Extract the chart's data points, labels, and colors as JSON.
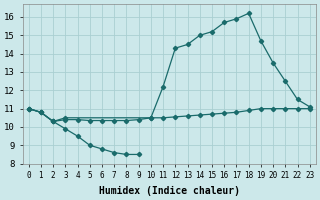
{
  "xlabel": "Humidex (Indice chaleur)",
  "background_color": "#cce8ea",
  "grid_color": "#aacfd2",
  "line_color": "#1a6b6b",
  "xlim": [
    -0.5,
    23.5
  ],
  "ylim": [
    8,
    16.7
  ],
  "xticks": [
    0,
    1,
    2,
    3,
    4,
    5,
    6,
    7,
    8,
    9,
    10,
    11,
    12,
    13,
    14,
    15,
    16,
    17,
    18,
    19,
    20,
    21,
    22,
    23
  ],
  "yticks": [
    8,
    9,
    10,
    11,
    12,
    13,
    14,
    15,
    16
  ],
  "line_dip_x": [
    0,
    1,
    2,
    3,
    4,
    5,
    6,
    7,
    8,
    9
  ],
  "line_dip_y": [
    11.0,
    10.8,
    10.3,
    9.9,
    9.5,
    9.0,
    8.8,
    8.6,
    8.5,
    8.5
  ],
  "line_flat_x": [
    0,
    1,
    2,
    3,
    4,
    5,
    6,
    7,
    8,
    9,
    10,
    11,
    12,
    13,
    14,
    15,
    16,
    17,
    18,
    19,
    20,
    21,
    22,
    23
  ],
  "line_flat_y": [
    11.0,
    10.8,
    10.3,
    10.4,
    10.4,
    10.35,
    10.35,
    10.35,
    10.35,
    10.4,
    10.5,
    10.5,
    10.55,
    10.6,
    10.65,
    10.7,
    10.75,
    10.8,
    10.9,
    11.0,
    11.0,
    11.0,
    11.0,
    11.0
  ],
  "line_high_x": [
    0,
    1,
    2,
    3,
    10,
    11,
    12,
    13,
    14,
    15,
    16,
    17,
    18,
    19,
    20,
    21,
    22,
    23
  ],
  "line_high_y": [
    11.0,
    10.8,
    10.3,
    10.5,
    10.5,
    12.2,
    14.3,
    14.5,
    15.0,
    15.2,
    15.7,
    15.9,
    16.2,
    14.7,
    13.5,
    12.5,
    11.5,
    11.1
  ]
}
